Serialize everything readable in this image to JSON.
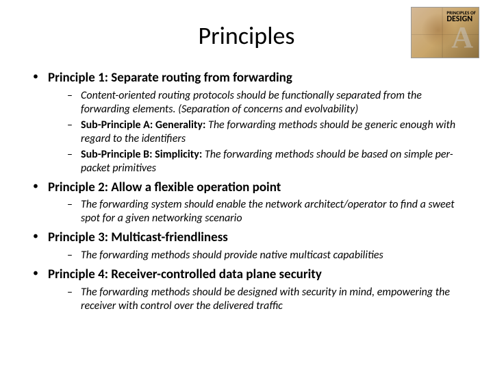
{
  "title": "Principles",
  "logo": {
    "top_label": "PRINCIPLES OF",
    "bottom_label": "DESIGN"
  },
  "principles": [
    {
      "heading": "Principle 1: Separate routing from forwarding",
      "subs": [
        {
          "prefix": "",
          "body": "Content-oriented routing protocols should be functionally separated from the forwarding elements. (Separation of concerns and evolvability)"
        },
        {
          "prefix": "Sub-Principle A: Generality: ",
          "body": "The forwarding methods should be generic enough with regard to the identifiers"
        },
        {
          "prefix": "Sub-Principle B: Simplicity: ",
          "body": "The forwarding methods should be based on simple per-packet primitives"
        }
      ]
    },
    {
      "heading": "Principle 2: Allow a flexible operation point",
      "subs": [
        {
          "prefix": "",
          "body": "The forwarding system should enable the network architect/operator to find a sweet spot for a given networking scenario"
        }
      ]
    },
    {
      "heading": "Principle 3: Multicast-friendliness",
      "subs": [
        {
          "prefix": "",
          "body": "The forwarding methods should provide native multicast capabilities"
        }
      ]
    },
    {
      "heading": "Principle 4: Receiver-controlled data plane security",
      "subs": [
        {
          "prefix": "",
          "body": "The forwarding methods should be designed with security in mind, empowering the receiver with control over the delivered traffic"
        }
      ]
    }
  ]
}
